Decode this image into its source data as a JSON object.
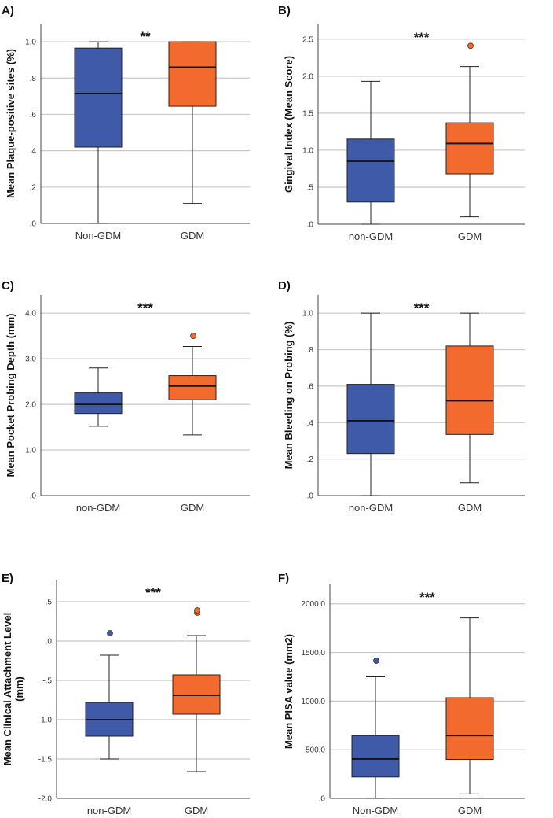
{
  "colors": {
    "non_gdm": "#3f5aa8",
    "gdm": "#f26a2e",
    "grid": "#c8c8c8"
  },
  "chart_data": [
    {
      "type": "box",
      "panel": "A)",
      "significance": "**",
      "ylabel": "Mean Plaque-positive sites (%)",
      "ylim": [
        0,
        1.1
      ],
      "ticks": [
        0,
        0.2,
        0.4,
        0.6,
        0.8,
        1.0
      ],
      "tick_labels": [
        ".0",
        ".2",
        ".4",
        ".6",
        ".8",
        "1.0"
      ],
      "grid": true,
      "categories": [
        "Non-GDM",
        "GDM"
      ],
      "boxes": [
        {
          "min": 0,
          "q1": 0.42,
          "median": 0.715,
          "q3": 0.965,
          "max": 1.0,
          "outliers": []
        },
        {
          "min": 0.11,
          "q1": 0.645,
          "median": 0.86,
          "q3": 1.0,
          "max": 1.0,
          "outliers": []
        }
      ]
    },
    {
      "type": "box",
      "panel": "B)",
      "significance": "***",
      "ylabel": "Gingival Index (Mean Score)",
      "ylim": [
        0,
        2.7
      ],
      "ticks": [
        0,
        0.5,
        1.0,
        1.5,
        2.0,
        2.5
      ],
      "tick_labels": [
        ".0",
        ".5",
        "1.0",
        "1.5",
        "2.0",
        "2.5"
      ],
      "grid": true,
      "categories": [
        "non-GDM",
        "GDM"
      ],
      "boxes": [
        {
          "min": 0,
          "q1": 0.3,
          "median": 0.85,
          "q3": 1.15,
          "max": 1.93,
          "outliers": []
        },
        {
          "min": 0.1,
          "q1": 0.68,
          "median": 1.09,
          "q3": 1.37,
          "max": 2.13,
          "outliers": [
            2.41
          ]
        }
      ]
    },
    {
      "type": "box",
      "panel": "C)",
      "significance": "***",
      "ylabel": "Mean Pocket Probing Depth (mm)",
      "ylim": [
        0,
        4.4
      ],
      "ticks": [
        0,
        1,
        2,
        3,
        4
      ],
      "tick_labels": [
        ".0",
        "1.0",
        "2.0",
        "3.0",
        "4.0"
      ],
      "grid": true,
      "categories": [
        "non-GDM",
        "GDM"
      ],
      "boxes": [
        {
          "min": 1.52,
          "q1": 1.8,
          "median": 2.0,
          "q3": 2.25,
          "max": 2.8,
          "outliers": []
        },
        {
          "min": 1.33,
          "q1": 2.1,
          "median": 2.4,
          "q3": 2.63,
          "max": 3.27,
          "outliers": [
            3.5
          ]
        }
      ]
    },
    {
      "type": "box",
      "panel": "D)",
      "significance": "***",
      "ylabel": "Mean Bleeding on Probing (%)",
      "ylim": [
        0,
        1.1
      ],
      "ticks": [
        0,
        0.2,
        0.4,
        0.6,
        0.8,
        1.0
      ],
      "tick_labels": [
        ".0",
        ".2",
        ".4",
        ".6",
        ".8",
        "1.0"
      ],
      "grid": true,
      "categories": [
        "non-GDM",
        "GDM"
      ],
      "boxes": [
        {
          "min": 0,
          "q1": 0.23,
          "median": 0.41,
          "q3": 0.61,
          "max": 1.0,
          "outliers": []
        },
        {
          "min": 0.07,
          "q1": 0.335,
          "median": 0.52,
          "q3": 0.82,
          "max": 1.0,
          "outliers": []
        }
      ]
    },
    {
      "type": "box",
      "panel": "E)",
      "significance": "***",
      "ylabel": [
        "Mean Clinical Attachment Level",
        "(mm)"
      ],
      "ylim": [
        -2.0,
        0.78
      ],
      "ticks": [
        -2.0,
        -1.5,
        -1.0,
        -0.5,
        0,
        0.5
      ],
      "tick_labels": [
        "-2.0",
        "-1.5",
        "-1.0",
        "-.5",
        ".0",
        ".5"
      ],
      "grid": true,
      "categories": [
        "non-GDM",
        "GDM"
      ],
      "boxes": [
        {
          "min": -1.5,
          "q1": -1.21,
          "median": -1.0,
          "q3": -0.78,
          "max": -0.18,
          "outliers": [
            0.1
          ]
        },
        {
          "min": -1.66,
          "q1": -0.93,
          "median": -0.69,
          "q3": -0.43,
          "max": 0.07,
          "outliers": [
            0.36,
            0.39
          ]
        }
      ]
    },
    {
      "type": "box",
      "panel": "F)",
      "significance": "***",
      "ylabel": "Mean PISA value (mm2)",
      "ylim": [
        0,
        2200
      ],
      "ticks": [
        0,
        500,
        1000,
        1500,
        2000
      ],
      "tick_labels": [
        ".0",
        "500.0",
        "1000.0",
        "1500.0",
        "2000.0"
      ],
      "grid": true,
      "categories": [
        "Non-GDM",
        "GDM"
      ],
      "boxes": [
        {
          "min": 0,
          "q1": 220,
          "median": 405,
          "q3": 645,
          "max": 1250,
          "outliers": [
            1415
          ]
        },
        {
          "min": 45,
          "q1": 400,
          "median": 645,
          "q3": 1035,
          "max": 1855,
          "outliers": []
        }
      ]
    }
  ]
}
